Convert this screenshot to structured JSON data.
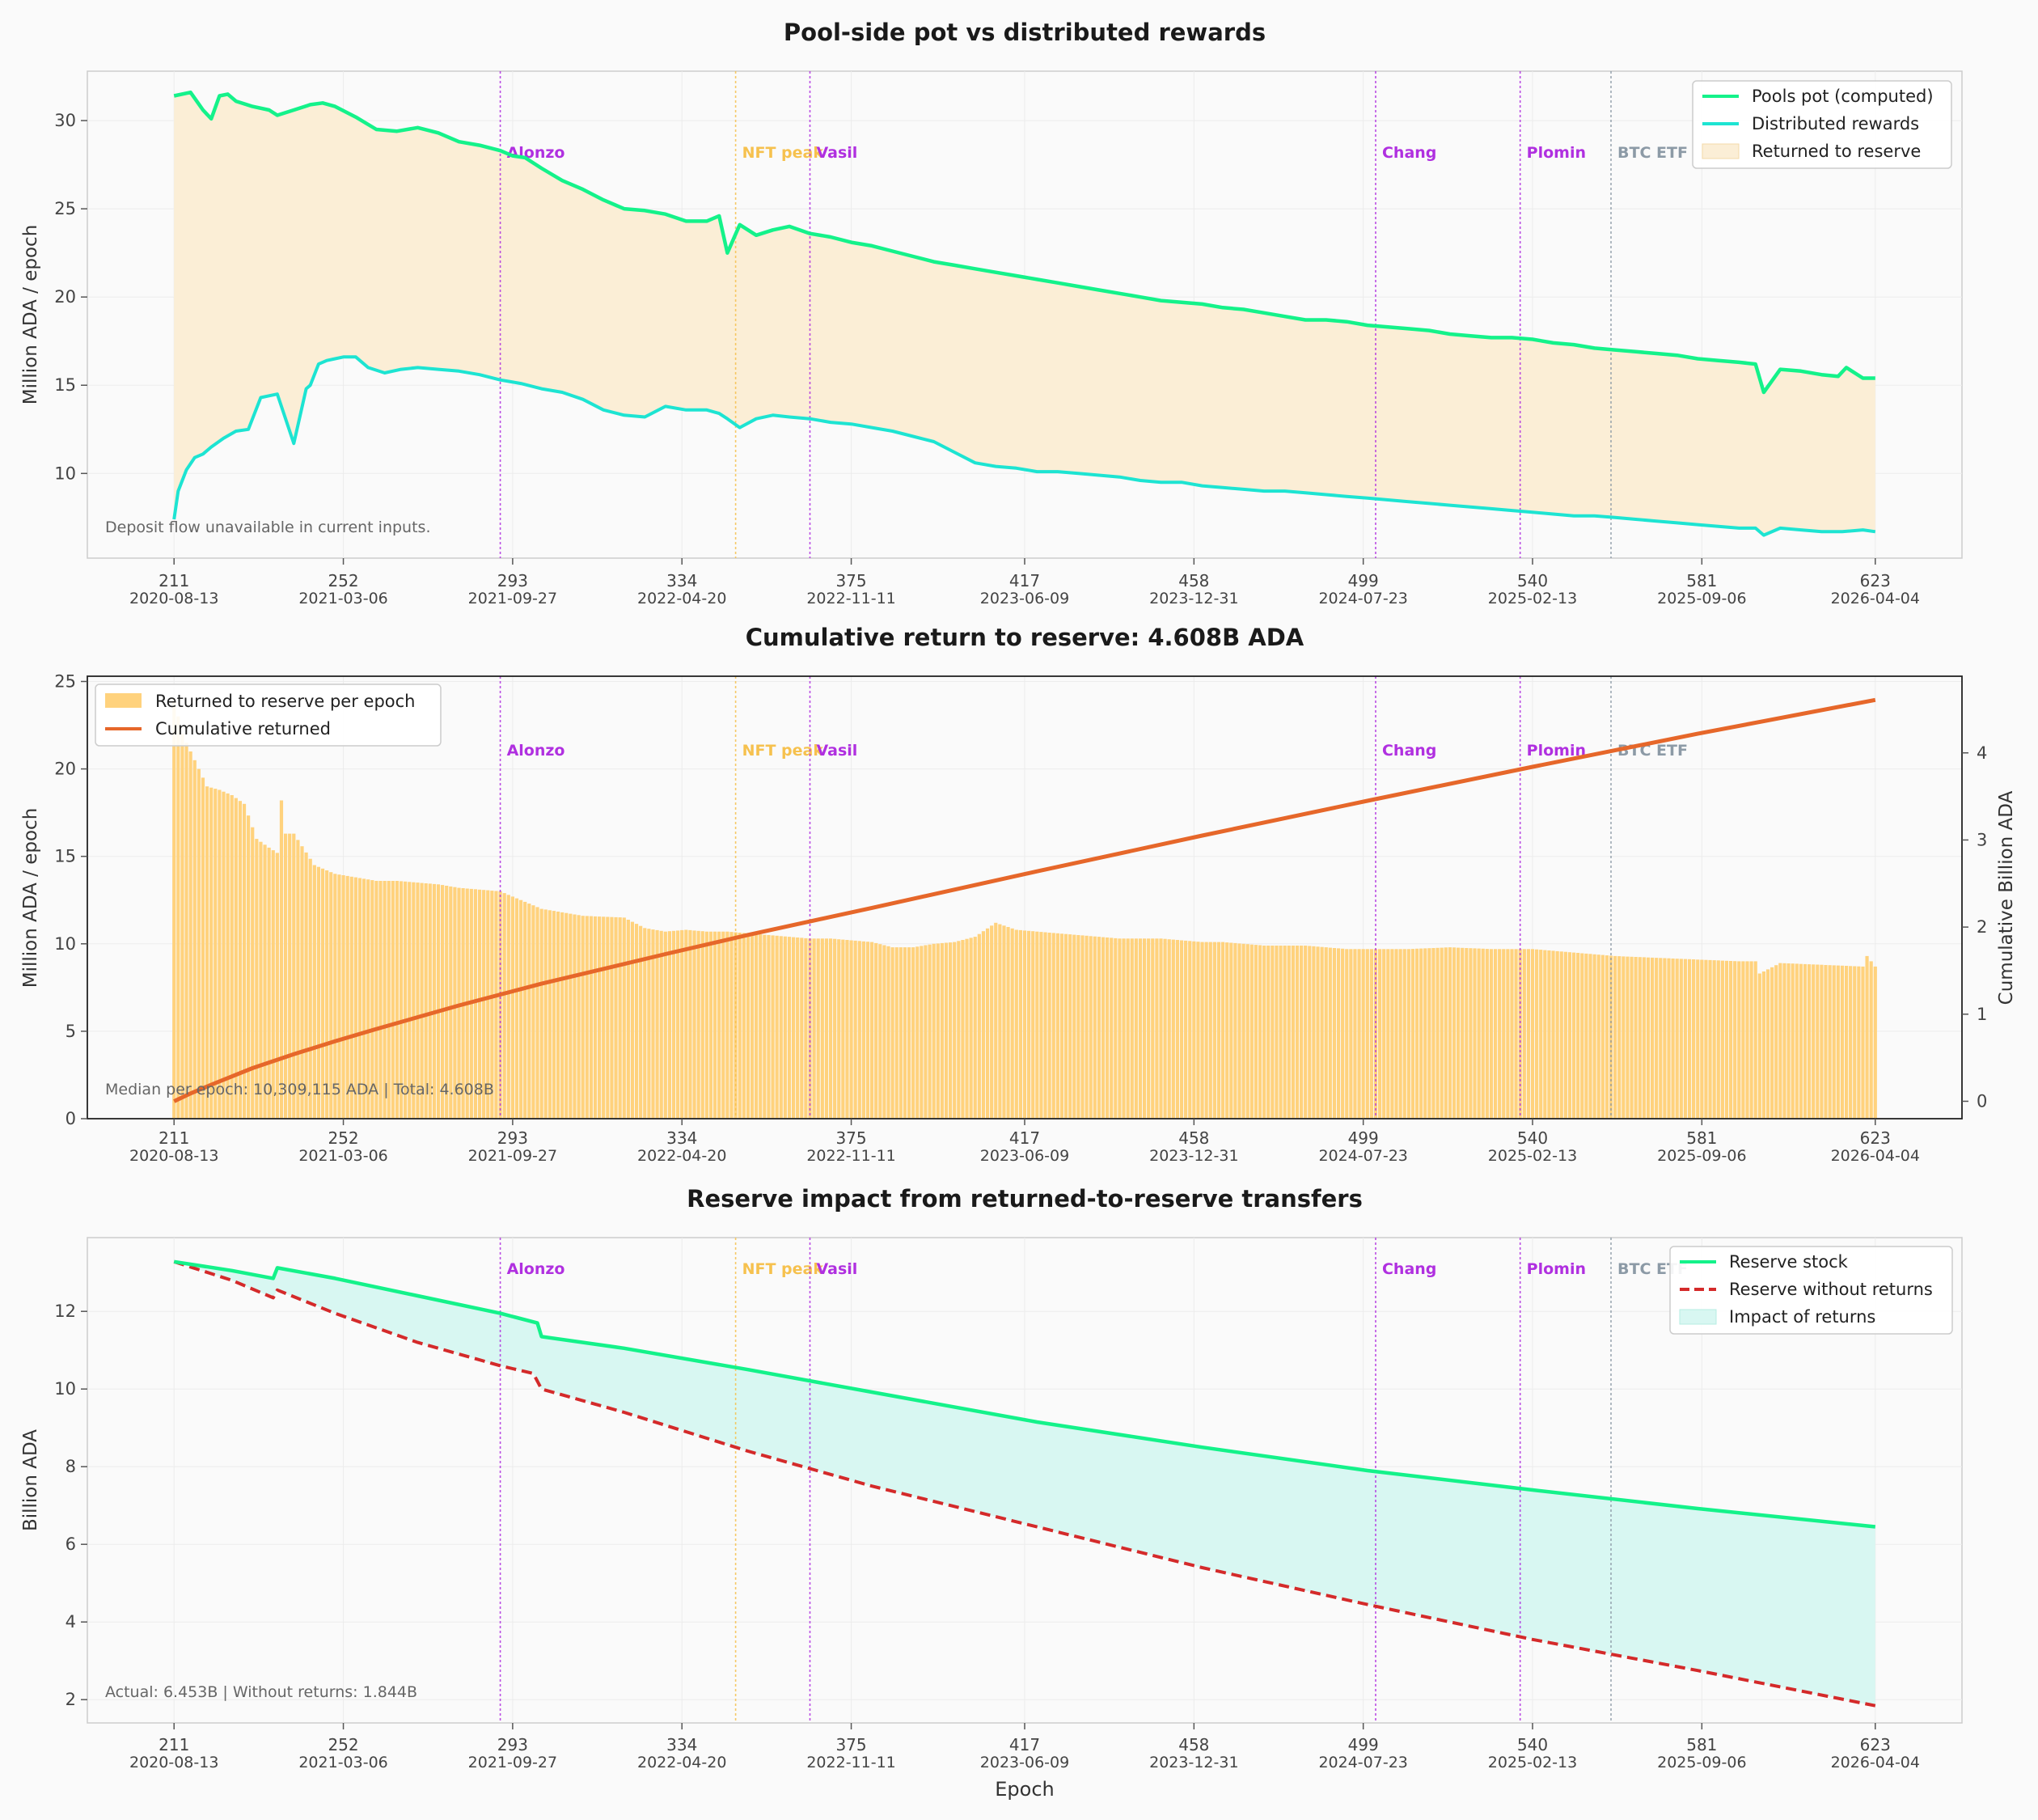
{
  "colors": {
    "pools_pot": "#14f28a",
    "distributed": "#1de4d2",
    "returned_fill": "#fbeed6",
    "bars": "#ffd27d",
    "cumulative": "#e6672a",
    "reserve": "#14f28a",
    "reserve_without": "#d42a2a",
    "impact_fill": "#d8f7f2",
    "event_purple": "#b030e0",
    "event_gold": "#f6c14e",
    "event_grey": "#8c9aa6"
  },
  "x_axis": {
    "label": "Epoch",
    "ticks": [
      {
        "epoch": 211,
        "date": "2020-08-13"
      },
      {
        "epoch": 252,
        "date": "2021-03-06"
      },
      {
        "epoch": 293,
        "date": "2021-09-27"
      },
      {
        "epoch": 334,
        "date": "2022-04-20"
      },
      {
        "epoch": 375,
        "date": "2022-11-11"
      },
      {
        "epoch": 417,
        "date": "2023-06-09"
      },
      {
        "epoch": 458,
        "date": "2023-12-31"
      },
      {
        "epoch": 499,
        "date": "2024-07-23"
      },
      {
        "epoch": 540,
        "date": "2025-02-13"
      },
      {
        "epoch": 581,
        "date": "2025-09-06"
      },
      {
        "epoch": 623,
        "date": "2026-04-04"
      }
    ],
    "range": [
      190,
      644
    ]
  },
  "events": [
    {
      "label": "Alonzo",
      "epoch": 290,
      "kind": "purple"
    },
    {
      "label": "NFT peak",
      "epoch": 347,
      "kind": "gold"
    },
    {
      "label": "Vasil",
      "epoch": 365,
      "kind": "purple"
    },
    {
      "label": "Chang",
      "epoch": 502,
      "kind": "purple"
    },
    {
      "label": "Plomin",
      "epoch": 537,
      "kind": "purple"
    },
    {
      "label": "BTC ETF",
      "epoch": 559,
      "kind": "grey"
    }
  ],
  "chart_data": [
    {
      "type": "line",
      "title": "Pool-side pot vs distributed rewards",
      "ylabel": "Million ADA / epoch",
      "ylim": [
        5.2,
        32.8
      ],
      "yticks": [
        10,
        15,
        20,
        25,
        30
      ],
      "legend_position": "top-right",
      "legend": [
        "Pools pot (computed)",
        "Distributed rewards",
        "Returned to reserve"
      ],
      "note": "Deposit flow unavailable in current inputs.",
      "series": [
        {
          "name": "Pools pot (computed)",
          "x": [
            211,
            215,
            218,
            220,
            222,
            224,
            226,
            230,
            234,
            236,
            240,
            244,
            247,
            250,
            255,
            260,
            265,
            270,
            275,
            280,
            285,
            290,
            293,
            296,
            300,
            305,
            310,
            315,
            320,
            325,
            330,
            335,
            340,
            343,
            345,
            348,
            352,
            356,
            360,
            365,
            370,
            375,
            380,
            385,
            390,
            395,
            400,
            405,
            410,
            415,
            420,
            425,
            430,
            435,
            440,
            445,
            450,
            455,
            460,
            465,
            470,
            475,
            480,
            485,
            490,
            495,
            500,
            505,
            510,
            515,
            520,
            525,
            530,
            535,
            540,
            545,
            550,
            555,
            560,
            565,
            570,
            575,
            580,
            585,
            590,
            594,
            596,
            600,
            605,
            610,
            614,
            616,
            620,
            623
          ],
          "y": [
            31.4,
            31.6,
            30.6,
            30.1,
            31.4,
            31.5,
            31.1,
            30.8,
            30.6,
            30.3,
            30.6,
            30.9,
            31.0,
            30.8,
            30.2,
            29.5,
            29.4,
            29.6,
            29.3,
            28.8,
            28.6,
            28.3,
            28.0,
            27.9,
            27.3,
            26.6,
            26.1,
            25.5,
            25.0,
            24.9,
            24.7,
            24.3,
            24.3,
            24.6,
            22.5,
            24.1,
            23.5,
            23.8,
            24.0,
            23.6,
            23.4,
            23.1,
            22.9,
            22.6,
            22.3,
            22.0,
            21.8,
            21.6,
            21.4,
            21.2,
            21.0,
            20.8,
            20.6,
            20.4,
            20.2,
            20.0,
            19.8,
            19.7,
            19.6,
            19.4,
            19.3,
            19.1,
            18.9,
            18.7,
            18.7,
            18.6,
            18.4,
            18.3,
            18.2,
            18.1,
            17.9,
            17.8,
            17.7,
            17.7,
            17.6,
            17.4,
            17.3,
            17.1,
            17.0,
            16.9,
            16.8,
            16.7,
            16.5,
            16.4,
            16.3,
            16.2,
            14.6,
            15.9,
            15.8,
            15.6,
            15.5,
            16.0,
            15.4,
            15.4
          ]
        },
        {
          "name": "Distributed rewards",
          "x": [
            211,
            212,
            214,
            216,
            218,
            220,
            223,
            226,
            229,
            232,
            234,
            236,
            240,
            243,
            244,
            246,
            248,
            250,
            252,
            255,
            258,
            262,
            266,
            270,
            275,
            280,
            285,
            290,
            295,
            300,
            305,
            310,
            315,
            320,
            325,
            330,
            335,
            340,
            343,
            345,
            348,
            352,
            356,
            360,
            365,
            370,
            375,
            380,
            385,
            390,
            395,
            400,
            405,
            410,
            415,
            420,
            425,
            430,
            435,
            440,
            445,
            450,
            455,
            460,
            465,
            470,
            475,
            480,
            485,
            490,
            495,
            500,
            505,
            510,
            515,
            520,
            525,
            530,
            535,
            540,
            545,
            550,
            555,
            560,
            565,
            570,
            575,
            580,
            585,
            590,
            594,
            596,
            600,
            605,
            610,
            615,
            620,
            623
          ],
          "y": [
            7.4,
            9.0,
            10.2,
            10.9,
            11.1,
            11.5,
            12.0,
            12.4,
            12.5,
            14.3,
            14.4,
            14.5,
            11.7,
            14.8,
            15.0,
            16.2,
            16.4,
            16.5,
            16.6,
            16.6,
            16.0,
            15.7,
            15.9,
            16.0,
            15.9,
            15.8,
            15.6,
            15.3,
            15.1,
            14.8,
            14.6,
            14.2,
            13.6,
            13.3,
            13.2,
            13.8,
            13.6,
            13.6,
            13.4,
            13.1,
            12.6,
            13.1,
            13.3,
            13.2,
            13.1,
            12.9,
            12.8,
            12.6,
            12.4,
            12.1,
            11.8,
            11.2,
            10.6,
            10.4,
            10.3,
            10.1,
            10.1,
            10.0,
            9.9,
            9.8,
            9.6,
            9.5,
            9.5,
            9.3,
            9.2,
            9.1,
            9.0,
            9.0,
            8.9,
            8.8,
            8.7,
            8.6,
            8.5,
            8.4,
            8.3,
            8.2,
            8.1,
            8.0,
            7.9,
            7.8,
            7.7,
            7.6,
            7.6,
            7.5,
            7.4,
            7.3,
            7.2,
            7.1,
            7.0,
            6.9,
            6.9,
            6.5,
            6.9,
            6.8,
            6.7,
            6.7,
            6.8,
            6.7
          ]
        }
      ]
    },
    {
      "type": "bar",
      "title": "Cumulative return to reserve: 4.608B ADA",
      "ylabel": "Million ADA / epoch",
      "ylabel_right": "Cumulative Billion ADA",
      "ylim": [
        0,
        25.3
      ],
      "yticks": [
        0,
        5,
        10,
        15,
        20,
        25
      ],
      "ylim_right": [
        -0.2,
        4.88
      ],
      "yticks_right": [
        0,
        1,
        2,
        3,
        4
      ],
      "legend_position": "top-left",
      "legend": [
        "Returned to reserve per epoch",
        "Cumulative returned"
      ],
      "note": "Median per epoch: 10,309,115 ADA | Total: 4.608B",
      "series": [
        {
          "name": "Returned to reserve per epoch",
          "x": [
            211,
            213,
            215,
            217,
            219,
            222,
            225,
            228,
            231,
            234,
            236,
            237,
            238,
            240,
            245,
            250,
            255,
            260,
            265,
            270,
            275,
            280,
            290,
            295,
            300,
            305,
            310,
            320,
            325,
            330,
            335,
            340,
            345,
            350,
            355,
            360,
            365,
            370,
            375,
            380,
            385,
            390,
            395,
            400,
            405,
            410,
            415,
            420,
            425,
            430,
            435,
            440,
            445,
            450,
            455,
            460,
            465,
            470,
            475,
            480,
            485,
            490,
            495,
            500,
            505,
            510,
            520,
            530,
            540,
            550,
            560,
            570,
            580,
            590,
            594,
            595,
            600,
            610,
            620,
            621,
            623
          ],
          "y": [
            24.0,
            22.0,
            21.0,
            20.0,
            19.0,
            18.8,
            18.5,
            18.0,
            16.0,
            15.5,
            15.2,
            18.2,
            16.3,
            16.3,
            14.5,
            14.0,
            13.8,
            13.6,
            13.6,
            13.5,
            13.4,
            13.2,
            13.0,
            12.5,
            12.0,
            11.8,
            11.6,
            11.5,
            10.9,
            10.7,
            10.8,
            10.7,
            10.7,
            10.6,
            10.5,
            10.4,
            10.3,
            10.3,
            10.2,
            10.1,
            9.8,
            9.8,
            10.0,
            10.1,
            10.4,
            11.2,
            10.8,
            10.7,
            10.6,
            10.5,
            10.4,
            10.3,
            10.3,
            10.3,
            10.2,
            10.1,
            10.1,
            10.0,
            9.9,
            9.9,
            9.9,
            9.8,
            9.7,
            9.7,
            9.7,
            9.7,
            9.8,
            9.7,
            9.7,
            9.5,
            9.3,
            9.2,
            9.1,
            9.0,
            9.0,
            8.3,
            8.9,
            8.8,
            8.7,
            9.3,
            8.7
          ]
        },
        {
          "name": "Cumulative returned",
          "x": [
            211,
            215,
            220,
            230,
            240,
            250,
            260,
            280,
            300,
            330,
            350,
            380,
            420,
            460,
            500,
            540,
            580,
            623
          ],
          "y": [
            0.0,
            0.09,
            0.19,
            0.38,
            0.54,
            0.69,
            0.83,
            1.1,
            1.35,
            1.69,
            1.91,
            2.22,
            2.64,
            3.05,
            3.45,
            3.84,
            4.22,
            4.608
          ]
        }
      ]
    },
    {
      "type": "line",
      "title": "Reserve impact from returned-to-reserve transfers",
      "xlabel": "Epoch",
      "ylabel": "Billion ADA",
      "ylim": [
        1.4,
        13.9
      ],
      "yticks": [
        2,
        4,
        6,
        8,
        10,
        12
      ],
      "legend_position": "top-right",
      "legend": [
        "Reserve stock",
        "Reserve without returns",
        "Impact of returns"
      ],
      "note": "Actual: 6.453B | Without returns: 1.844B",
      "series": [
        {
          "name": "Reserve stock",
          "x": [
            211,
            225,
            235,
            236,
            250,
            270,
            290,
            299,
            300,
            320,
            350,
            380,
            420,
            460,
            500,
            540,
            580,
            623
          ],
          "y": [
            13.28,
            13.05,
            12.85,
            13.12,
            12.85,
            12.4,
            11.95,
            11.7,
            11.35,
            11.05,
            10.5,
            9.92,
            9.15,
            8.5,
            7.9,
            7.4,
            6.92,
            6.453
          ]
        },
        {
          "name": "Reserve without returns",
          "x": [
            211,
            225,
            235,
            236,
            250,
            270,
            290,
            298,
            300,
            320,
            350,
            380,
            420,
            460,
            500,
            540,
            580,
            623
          ],
          "y": [
            13.28,
            12.8,
            12.35,
            12.55,
            11.95,
            11.2,
            10.6,
            10.4,
            10.0,
            9.4,
            8.4,
            7.5,
            6.45,
            5.4,
            4.45,
            3.55,
            2.75,
            1.844
          ]
        }
      ]
    }
  ]
}
